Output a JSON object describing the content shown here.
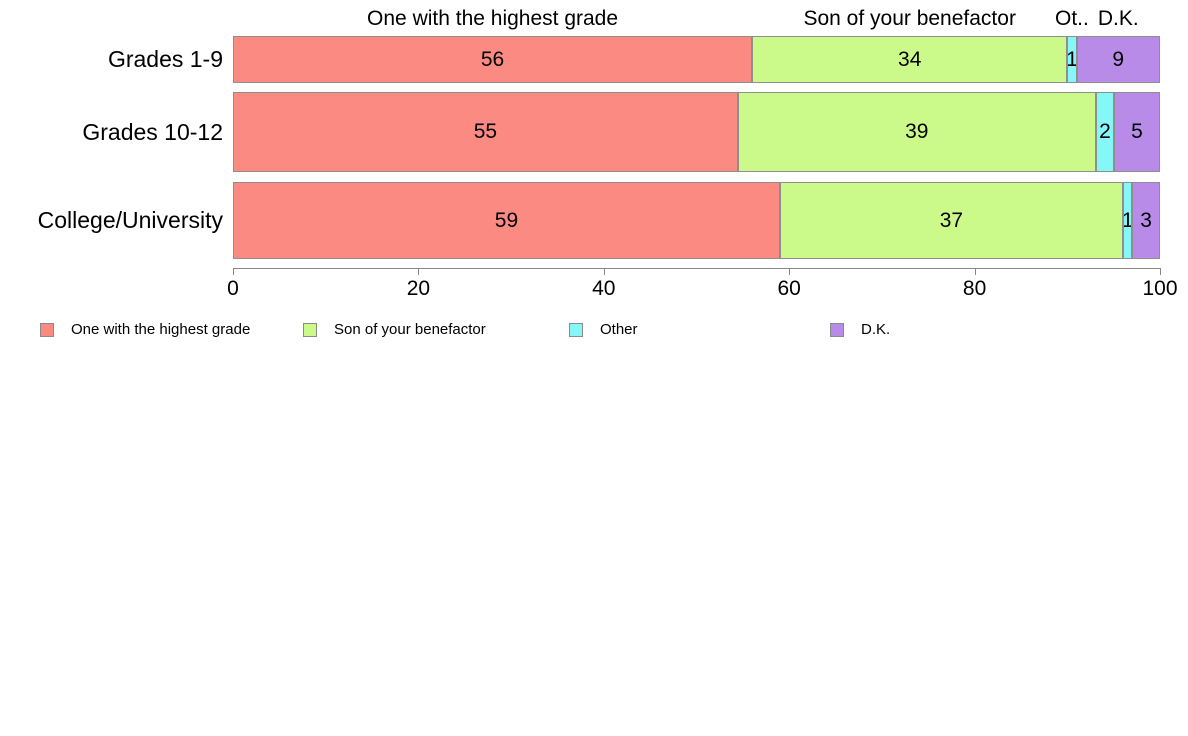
{
  "chart_data": {
    "type": "bar",
    "orientation": "horizontal-stacked",
    "title": "",
    "categories": [
      "Grades 1-9",
      "Grades 10-12",
      "College/University"
    ],
    "series": [
      {
        "name": "One with the highest grade",
        "color": "#fb8a82",
        "values": [
          56,
          55,
          59
        ]
      },
      {
        "name": "Son of your benefactor",
        "color": "#cbfa8a",
        "values": [
          34,
          39,
          37
        ]
      },
      {
        "name": "Other",
        "color": "#86f7f9",
        "values": [
          1,
          2,
          1
        ]
      },
      {
        "name": "D.K.",
        "color": "#b98be9",
        "values": [
          9,
          5,
          3
        ]
      }
    ],
    "column_headers": [
      "One with the highest grade",
      "Son of your benefactor",
      "Ot..",
      "D.K."
    ],
    "x_ticks": [
      0,
      20,
      40,
      60,
      80,
      100
    ],
    "xlim": [
      0,
      100
    ],
    "grid": false,
    "legend_entries": [
      "One with the highest grade",
      "Son of your benefactor",
      "Other",
      "D.K."
    ],
    "legend_position": "bottom-left"
  },
  "styles": {
    "bar_border_color": "#8e8e8e",
    "axis_color": "#878787",
    "text_color": "#000000",
    "background": "#ffffff"
  }
}
